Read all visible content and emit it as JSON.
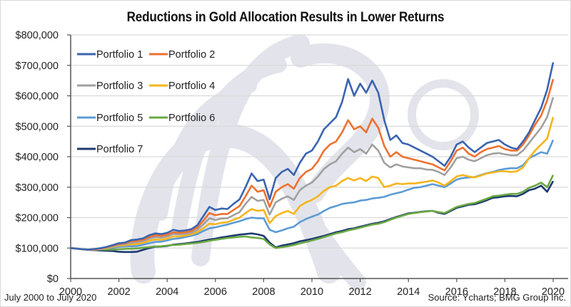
{
  "title": "Reductions in Gold Allocation Results in Lower Returns",
  "footer": {
    "date_range": "July 2000 to July 2020",
    "source": "Source: Ycharts; BMG Group Inc."
  },
  "chart_data": {
    "type": "line",
    "title": "Reductions in Gold Allocation Results in Lower Returns",
    "xlabel": "",
    "ylabel": "",
    "xlim": [
      2000,
      2020.5
    ],
    "ylim": [
      0,
      800000
    ],
    "grid": true,
    "legend_position": "top-left",
    "x_ticks": [
      2000,
      2002,
      2004,
      2006,
      2008,
      2010,
      2012,
      2014,
      2016,
      2018,
      2020
    ],
    "x_tick_labels": [
      "2000",
      "2002",
      "2004",
      "2006",
      "2008",
      "2010",
      "2012",
      "2014",
      "2016",
      "2018",
      "2020"
    ],
    "y_ticks": [
      0,
      100000,
      200000,
      300000,
      400000,
      500000,
      600000,
      700000,
      800000
    ],
    "y_tick_labels": [
      "$0",
      "$100,000",
      "$200,000",
      "$300,000",
      "$400,000",
      "$500,000",
      "$600,000",
      "$700,000",
      "$800,000"
    ],
    "x": [
      2000.0,
      2000.25,
      2000.5,
      2000.75,
      2001.0,
      2001.25,
      2001.5,
      2001.75,
      2002.0,
      2002.25,
      2002.5,
      2002.75,
      2003.0,
      2003.25,
      2003.5,
      2003.75,
      2004.0,
      2004.25,
      2004.5,
      2004.75,
      2005.0,
      2005.25,
      2005.5,
      2005.75,
      2006.0,
      2006.25,
      2006.5,
      2006.75,
      2007.0,
      2007.25,
      2007.5,
      2007.75,
      2008.0,
      2008.25,
      2008.5,
      2008.75,
      2009.0,
      2009.25,
      2009.5,
      2009.75,
      2010.0,
      2010.25,
      2010.5,
      2010.75,
      2011.0,
      2011.25,
      2011.5,
      2011.75,
      2012.0,
      2012.25,
      2012.5,
      2012.75,
      2013.0,
      2013.25,
      2013.5,
      2013.75,
      2014.0,
      2014.25,
      2014.5,
      2014.75,
      2015.0,
      2015.25,
      2015.5,
      2015.75,
      2016.0,
      2016.25,
      2016.5,
      2016.75,
      2017.0,
      2017.25,
      2017.5,
      2017.75,
      2018.0,
      2018.25,
      2018.5,
      2018.75,
      2019.0,
      2019.25,
      2019.5,
      2019.75,
      2020.0
    ],
    "series": [
      {
        "name": "Portfolio 1",
        "color": "#3a64b0",
        "values": [
          100000,
          98000,
          96000,
          95000,
          97000,
          100000,
          104000,
          110000,
          116000,
          118000,
          126000,
          128000,
          132000,
          142000,
          148000,
          146000,
          150000,
          160000,
          156000,
          158000,
          162000,
          175000,
          205000,
          235000,
          225000,
          230000,
          228000,
          245000,
          260000,
          300000,
          345000,
          320000,
          325000,
          260000,
          330000,
          350000,
          360000,
          340000,
          380000,
          410000,
          420000,
          450000,
          490000,
          510000,
          530000,
          580000,
          655000,
          600000,
          640000,
          610000,
          650000,
          610000,
          520000,
          455000,
          470000,
          445000,
          440000,
          430000,
          420000,
          410000,
          400000,
          385000,
          370000,
          400000,
          440000,
          450000,
          430000,
          415000,
          430000,
          445000,
          450000,
          455000,
          440000,
          430000,
          425000,
          450000,
          480000,
          520000,
          560000,
          620000,
          710000
        ]
      },
      {
        "name": "Portfolio 2",
        "color": "#ed7130",
        "values": [
          100000,
          98000,
          96000,
          95000,
          96000,
          99000,
          103000,
          108000,
          114000,
          116000,
          122000,
          124000,
          128000,
          136000,
          142000,
          140000,
          144000,
          152000,
          150000,
          152000,
          156000,
          168000,
          190000,
          215000,
          208000,
          212000,
          212000,
          225000,
          238000,
          270000,
          305000,
          285000,
          290000,
          235000,
          285000,
          300000,
          310000,
          295000,
          330000,
          350000,
          360000,
          385000,
          420000,
          440000,
          450000,
          480000,
          520000,
          490000,
          500000,
          480000,
          525000,
          495000,
          435000,
          400000,
          415000,
          400000,
          395000,
          390000,
          385000,
          380000,
          375000,
          365000,
          355000,
          385000,
          420000,
          430000,
          410000,
          400000,
          415000,
          425000,
          430000,
          435000,
          425000,
          420000,
          420000,
          440000,
          470000,
          505000,
          535000,
          585000,
          655000
        ]
      },
      {
        "name": "Portfolio 3",
        "color": "#a0a0a0",
        "values": [
          100000,
          98000,
          96000,
          95000,
          96000,
          98000,
          102000,
          106000,
          111000,
          113000,
          118000,
          119000,
          123000,
          131000,
          136000,
          134000,
          138000,
          146000,
          145000,
          147000,
          150000,
          160000,
          178000,
          198000,
          192000,
          197000,
          198000,
          208000,
          218000,
          245000,
          268000,
          255000,
          258000,
          210000,
          250000,
          262000,
          270000,
          258000,
          290000,
          305000,
          315000,
          335000,
          360000,
          375000,
          385000,
          410000,
          430000,
          415000,
          425000,
          410000,
          440000,
          420000,
          380000,
          365000,
          375000,
          368000,
          365000,
          362000,
          362000,
          358000,
          357000,
          350000,
          340000,
          365000,
          395000,
          400000,
          390000,
          385000,
          395000,
          405000,
          410000,
          412000,
          408000,
          405000,
          405000,
          420000,
          445000,
          470000,
          495000,
          530000,
          595000
        ]
      },
      {
        "name": "Portfolio 4",
        "color": "#f5b51c",
        "values": [
          100000,
          98000,
          96000,
          95000,
          95000,
          97000,
          100000,
          104000,
          108000,
          109000,
          112000,
          113000,
          117000,
          124000,
          128000,
          127000,
          131000,
          138000,
          138000,
          141000,
          145000,
          152000,
          165000,
          180000,
          178000,
          183000,
          185000,
          193000,
          200000,
          215000,
          228000,
          222000,
          225000,
          182000,
          205000,
          215000,
          222000,
          212000,
          238000,
          250000,
          258000,
          270000,
          288000,
          300000,
          305000,
          320000,
          330000,
          322000,
          330000,
          320000,
          335000,
          330000,
          300000,
          305000,
          312000,
          310000,
          312000,
          312000,
          315000,
          318000,
          322000,
          315000,
          305000,
          320000,
          335000,
          340000,
          335000,
          332000,
          338000,
          345000,
          348000,
          352000,
          352000,
          350000,
          352000,
          365000,
          395000,
          420000,
          440000,
          460000,
          530000
        ]
      },
      {
        "name": "Portfolio 5",
        "color": "#5b9bd5",
        "values": [
          100000,
          98000,
          96000,
          95000,
          95000,
          96000,
          99000,
          101000,
          104000,
          105000,
          106000,
          107000,
          111000,
          116000,
          120000,
          121000,
          125000,
          130000,
          132000,
          136000,
          140000,
          146000,
          156000,
          165000,
          168000,
          173000,
          177000,
          183000,
          188000,
          195000,
          200000,
          198000,
          198000,
          160000,
          152000,
          158000,
          165000,
          170000,
          185000,
          195000,
          203000,
          210000,
          222000,
          232000,
          238000,
          245000,
          248000,
          250000,
          256000,
          258000,
          263000,
          265000,
          268000,
          275000,
          280000,
          285000,
          292000,
          298000,
          300000,
          305000,
          310000,
          305000,
          300000,
          312000,
          325000,
          330000,
          332000,
          333000,
          340000,
          346000,
          350000,
          356000,
          360000,
          362000,
          362000,
          372000,
          395000,
          405000,
          415000,
          410000,
          455000
        ]
      },
      {
        "name": "Portfolio 6",
        "color": "#6aa842",
        "values": [
          100000,
          98000,
          96000,
          95000,
          95000,
          95000,
          95000,
          95000,
          96000,
          97000,
          98000,
          99000,
          101000,
          103000,
          105000,
          106000,
          108000,
          110000,
          111000,
          113000,
          115000,
          117000,
          120000,
          124000,
          127000,
          130000,
          133000,
          135000,
          137000,
          138000,
          135000,
          133000,
          130000,
          112000,
          100000,
          103000,
          106000,
          110000,
          115000,
          120000,
          125000,
          130000,
          136000,
          142000,
          148000,
          152000,
          158000,
          162000,
          167000,
          172000,
          177000,
          180000,
          185000,
          193000,
          200000,
          206000,
          212000,
          215000,
          218000,
          220000,
          222000,
          218000,
          215000,
          225000,
          235000,
          240000,
          245000,
          248000,
          255000,
          262000,
          270000,
          272000,
          275000,
          278000,
          278000,
          285000,
          298000,
          305000,
          315000,
          300000,
          340000
        ]
      },
      {
        "name": "Portfolio 7",
        "color": "#1c3a70",
        "values": [
          100000,
          98000,
          96000,
          94000,
          93000,
          92000,
          91000,
          90000,
          88000,
          87000,
          87000,
          88000,
          94000,
          100000,
          104000,
          105000,
          107000,
          111000,
          113000,
          115000,
          118000,
          120000,
          124000,
          128000,
          131000,
          135000,
          138000,
          141000,
          144000,
          146000,
          148000,
          145000,
          140000,
          118000,
          102000,
          108000,
          112000,
          116000,
          122000,
          126000,
          130000,
          135000,
          140000,
          146000,
          152000,
          156000,
          162000,
          165000,
          170000,
          175000,
          180000,
          183000,
          188000,
          195000,
          202000,
          208000,
          214000,
          216000,
          219000,
          221000,
          222000,
          216000,
          212000,
          222000,
          232000,
          237000,
          242000,
          244000,
          250000,
          257000,
          265000,
          267000,
          270000,
          271000,
          270000,
          278000,
          290000,
          295000,
          305000,
          285000,
          320000
        ]
      }
    ]
  }
}
